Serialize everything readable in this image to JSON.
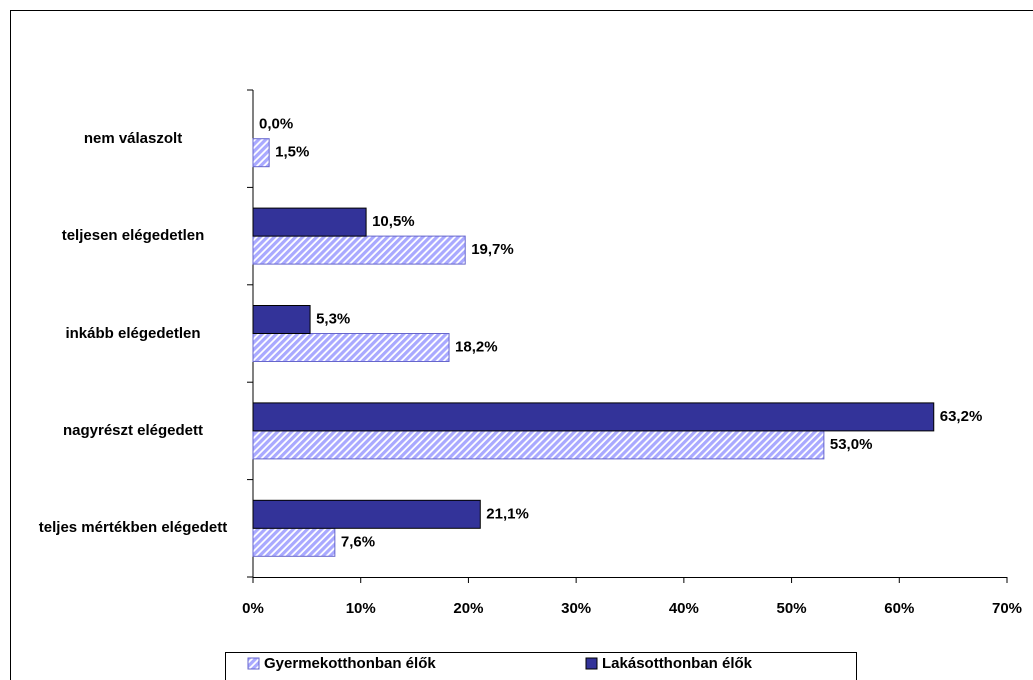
{
  "chart_data": {
    "type": "bar",
    "orientation": "horizontal",
    "categories": [
      "nem válaszolt",
      "teljesen elégedetlen",
      "inkább elégedetlen",
      "nagyrészt elégedett",
      "teljes mértékben elégedett"
    ],
    "series": [
      {
        "name": "Gyermekotthonban élők",
        "color": "#a9a9ff",
        "hatch": true,
        "values": [
          1.5,
          19.7,
          18.2,
          53.0,
          7.6
        ],
        "value_labels": [
          "1,5%",
          "19,7%",
          "18,2%",
          "53,0%",
          "7,6%"
        ]
      },
      {
        "name": "Lakásotthonban élők",
        "color": "#333399",
        "hatch": false,
        "values": [
          0.0,
          10.5,
          5.3,
          63.2,
          21.1
        ],
        "value_labels": [
          "0,0%",
          "10,5%",
          "5,3%",
          "63,2%",
          "21,1%"
        ]
      }
    ],
    "xlim": [
      0,
      70
    ],
    "xticks": [
      {
        "value": 0,
        "label": "0%"
      },
      {
        "value": 10,
        "label": "10%"
      },
      {
        "value": 20,
        "label": "20%"
      },
      {
        "value": 30,
        "label": "30%"
      },
      {
        "value": 40,
        "label": "40%"
      },
      {
        "value": 50,
        "label": "50%"
      },
      {
        "value": 60,
        "label": "60%"
      },
      {
        "value": 70,
        "label": "70%"
      }
    ],
    "legend": "bottom"
  }
}
